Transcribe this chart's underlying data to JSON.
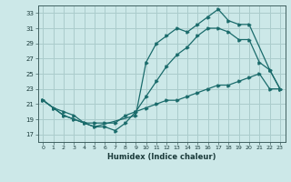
{
  "xlabel": "Humidex (Indice chaleur)",
  "bg_color": "#cce8e8",
  "grid_color": "#aacccc",
  "line_color": "#1a6b6b",
  "xlim": [
    -0.5,
    23.5
  ],
  "ylim": [
    16.0,
    34.0
  ],
  "xticks": [
    0,
    1,
    2,
    3,
    4,
    5,
    6,
    7,
    8,
    9,
    10,
    11,
    12,
    13,
    14,
    15,
    16,
    17,
    18,
    19,
    20,
    21,
    22,
    23
  ],
  "yticks": [
    17,
    19,
    21,
    23,
    25,
    27,
    29,
    31,
    33
  ],
  "line1_x": [
    0,
    1,
    2,
    3,
    4,
    5,
    9,
    10,
    11,
    12,
    13,
    14,
    15,
    16,
    17,
    18,
    19,
    20,
    22,
    23
  ],
  "line1_y": [
    21.5,
    20.5,
    19.5,
    19.0,
    18.5,
    18.0,
    19.5,
    26.5,
    29.0,
    30.0,
    31.0,
    30.5,
    31.5,
    32.5,
    33.5,
    32.0,
    31.5,
    31.5,
    25.5,
    23.0
  ],
  "line2_x": [
    0,
    1,
    2,
    3,
    4,
    5,
    6,
    7,
    8,
    9,
    10,
    11,
    12,
    13,
    14,
    15,
    16,
    17,
    18,
    19,
    20,
    21,
    22,
    23
  ],
  "line2_y": [
    21.5,
    20.5,
    19.5,
    19.0,
    18.5,
    18.0,
    18.0,
    17.5,
    18.5,
    20.0,
    22.0,
    24.0,
    26.0,
    27.5,
    28.5,
    30.0,
    31.0,
    31.0,
    30.5,
    29.5,
    29.5,
    26.5,
    25.5,
    23.0
  ],
  "line3_x": [
    0,
    1,
    2,
    3,
    4,
    5,
    6,
    7,
    8,
    9,
    10,
    11,
    12,
    13,
    14,
    15,
    16,
    17,
    18,
    19,
    20,
    21,
    22,
    23
  ],
  "line3_y": [
    21.5,
    20.5,
    20.0,
    19.5,
    18.5,
    18.5,
    18.5,
    18.5,
    19.5,
    20.0,
    20.5,
    21.0,
    21.5,
    21.5,
    22.0,
    22.5,
    23.0,
    23.5,
    23.5,
    24.0,
    24.5,
    25.0,
    23.0,
    23.0
  ]
}
